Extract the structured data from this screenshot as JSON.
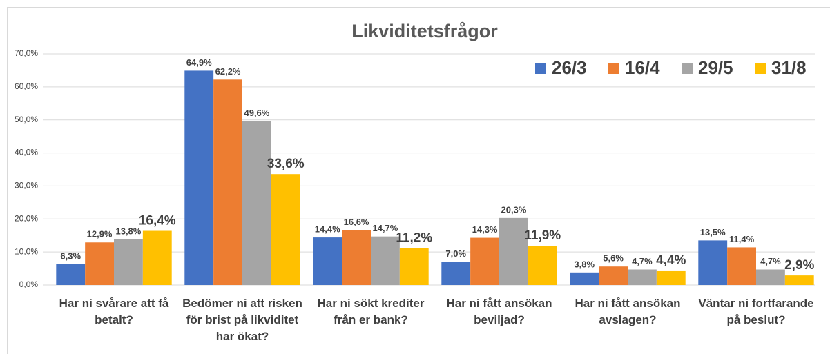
{
  "chart_data": {
    "type": "bar",
    "title": "Likviditetsfrågor",
    "categories": [
      "Har ni svårare att få betalt?",
      "Bedömer ni att risken för brist på likviditet har ökat?",
      "Har ni sökt krediter från er bank?",
      "Har ni fått ansökan beviljad?",
      "Har ni fått ansökan avslagen?",
      "Väntar ni fortfarande på beslut?"
    ],
    "series": [
      {
        "name": "26/3",
        "color": "#4472c4",
        "values": [
          6.3,
          64.9,
          14.4,
          7.0,
          3.8,
          13.5
        ],
        "value_labels": [
          "6,3%",
          "64,9%",
          "14,4%",
          "7,0%",
          "3,8%",
          "13,5%"
        ]
      },
      {
        "name": "16/4",
        "color": "#ed7d31",
        "values": [
          12.9,
          62.2,
          16.6,
          14.3,
          5.6,
          11.4
        ],
        "value_labels": [
          "12,9%",
          "62,2%",
          "16,6%",
          "14,3%",
          "5,6%",
          "11,4%"
        ]
      },
      {
        "name": "29/5",
        "color": "#a5a5a5",
        "values": [
          13.8,
          49.6,
          14.7,
          20.3,
          4.7,
          4.7
        ],
        "value_labels": [
          "13,8%",
          "49,6%",
          "14,7%",
          "20,3%",
          "4,7%",
          "4,7%"
        ]
      },
      {
        "name": "31/8",
        "color": "#ffc000",
        "values": [
          16.4,
          33.6,
          11.2,
          11.9,
          4.4,
          2.9
        ],
        "value_labels": [
          "16,4%",
          "33,6%",
          "11,2%",
          "11,9%",
          "4,4%",
          "2,9%"
        ]
      }
    ],
    "ylim": [
      0,
      70
    ],
    "yticks": [
      {
        "value": 0,
        "label": "0,0%"
      },
      {
        "value": 10,
        "label": "10,0%"
      },
      {
        "value": 20,
        "label": "20,0%"
      },
      {
        "value": 30,
        "label": "30,0%"
      },
      {
        "value": 40,
        "label": "40,0%"
      },
      {
        "value": 50,
        "label": "50,0%"
      },
      {
        "value": 60,
        "label": "60,0%"
      },
      {
        "value": 70,
        "label": "70,0%"
      }
    ],
    "grid": true,
    "legend": "top-right"
  }
}
